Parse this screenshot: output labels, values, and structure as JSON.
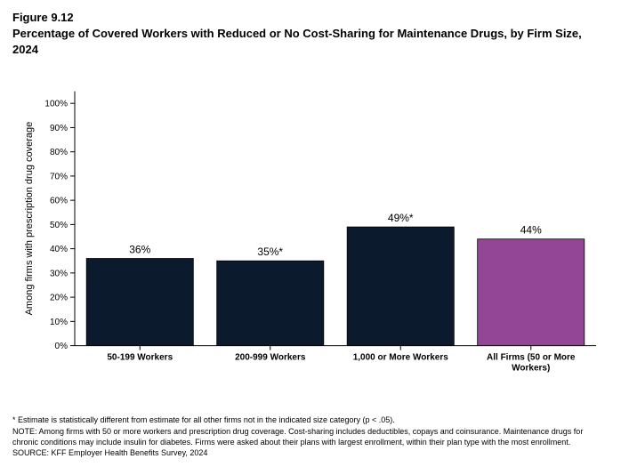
{
  "figure_number": "Figure 9.12",
  "figure_title": "Percentage of Covered Workers with Reduced or No Cost-Sharing for Maintenance Drugs, by Firm Size, 2024",
  "chart": {
    "type": "bar",
    "y_axis_label": "Among firms with prescription drug coverage",
    "ylim": [
      0,
      105
    ],
    "yticks": [
      0,
      10,
      20,
      30,
      40,
      50,
      60,
      70,
      80,
      90,
      100
    ],
    "ytick_labels": [
      "0%",
      "10%",
      "20%",
      "30%",
      "40%",
      "50%",
      "60%",
      "70%",
      "80%",
      "90%",
      "100%"
    ],
    "categories": [
      {
        "label_lines": [
          "50-199 Workers"
        ],
        "value": 36,
        "display": "36%",
        "color": "#0c1a2e"
      },
      {
        "label_lines": [
          "200-999 Workers"
        ],
        "value": 35,
        "display": "35%*",
        "color": "#0c1a2e"
      },
      {
        "label_lines": [
          "1,000 or More Workers"
        ],
        "value": 49,
        "display": "49%*",
        "color": "#0c1a2e"
      },
      {
        "label_lines": [
          "All Firms (50 or More",
          "Workers)"
        ],
        "value": 44,
        "display": "44%",
        "color": "#934596"
      }
    ],
    "axis_color": "#000000",
    "tick_length": 5,
    "bar_width_ratio": 0.82,
    "value_fontsize": 12,
    "axis_fontsize": 10,
    "ylabel_fontsize": 11,
    "background_color": "#ffffff"
  },
  "footnotes": {
    "sig": "* Estimate is statistically different from estimate for all other firms not in the indicated size category (p < .05).",
    "note": "NOTE: Among firms with 50 or more workers and prescription drug coverage. Cost-sharing includes deductibles, copays and coinsurance. Maintenance drugs for chronic conditions may include insulin for diabetes. Firms were asked about their plans with largest enrollment, within their plan type with the most enrollment.",
    "source": "SOURCE: KFF Employer Health Benefits Survey, 2024"
  }
}
